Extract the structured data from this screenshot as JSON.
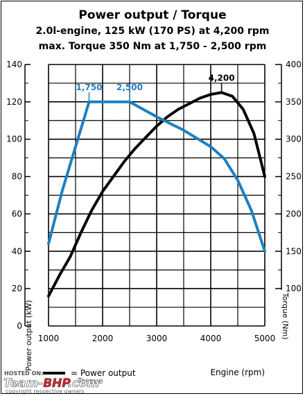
{
  "chart_data": {
    "type": "line",
    "title": "Power output / Torque",
    "subtitle_lines": [
      "2.0l-engine, 125 kW (170 PS) at 4,200 rpm",
      "max. Torque 350 Nm at 1,750 - 2,500 rpm"
    ],
    "xlabel": "Engine (rpm)",
    "ylabel_left": "Power output (kW)",
    "ylabel_right": "Torque (Nm)",
    "xlim": [
      1000,
      5000
    ],
    "ylim_left": [
      0,
      140
    ],
    "ylim_right": [
      50,
      400
    ],
    "x_ticks": [
      "1000",
      "2000",
      "3000",
      "4000",
      "5000"
    ],
    "y_left_ticks": [
      "0",
      "20",
      "40",
      "60",
      "80",
      "100",
      "120",
      "140"
    ],
    "y_right_ticks": [
      "100",
      "150",
      "200",
      "250",
      "300",
      "350",
      "400"
    ],
    "grid": true,
    "series": [
      {
        "name": "Power output",
        "axis": "left",
        "color": "#000000",
        "points": [
          [
            1000,
            16
          ],
          [
            1200,
            27
          ],
          [
            1400,
            37
          ],
          [
            1600,
            50
          ],
          [
            1800,
            62
          ],
          [
            2000,
            72
          ],
          [
            2200,
            80
          ],
          [
            2400,
            88
          ],
          [
            2600,
            95
          ],
          [
            2800,
            101
          ],
          [
            3000,
            107
          ],
          [
            3200,
            112
          ],
          [
            3400,
            116
          ],
          [
            3600,
            119
          ],
          [
            3800,
            122
          ],
          [
            4000,
            124
          ],
          [
            4200,
            125
          ],
          [
            4400,
            123
          ],
          [
            4600,
            116
          ],
          [
            4800,
            103
          ],
          [
            5000,
            80
          ]
        ]
      },
      {
        "name": "Torque",
        "axis": "right",
        "color": "#1f7fc0",
        "points": [
          [
            1000,
            160
          ],
          [
            1250,
            230
          ],
          [
            1500,
            290
          ],
          [
            1750,
            350
          ],
          [
            2000,
            350
          ],
          [
            2250,
            350
          ],
          [
            2500,
            350
          ],
          [
            3000,
            330
          ],
          [
            3500,
            312
          ],
          [
            4000,
            290
          ],
          [
            4250,
            274
          ],
          [
            4500,
            245
          ],
          [
            4750,
            205
          ],
          [
            5000,
            150
          ]
        ]
      }
    ],
    "annotations": [
      {
        "text": "1,750",
        "x": 1750,
        "axis": "right",
        "y": 350,
        "color": "#1f7fc0"
      },
      {
        "text": "2,500",
        "x": 2500,
        "axis": "right",
        "y": 350,
        "color": "#1f7fc0"
      },
      {
        "text": "4,200",
        "x": 4200,
        "axis": "left",
        "y": 125,
        "color": "#000000"
      }
    ],
    "legend": {
      "text": "= Power output",
      "text2": "Torque",
      "position": "bottom-left"
    }
  },
  "watermark": {
    "hosted_on": "HOSTED ON:",
    "brand_prefix": "Team-",
    "brand_suffix": "BHP",
    "brand_tld": ".com",
    "copyright": "copyright respective owners"
  }
}
